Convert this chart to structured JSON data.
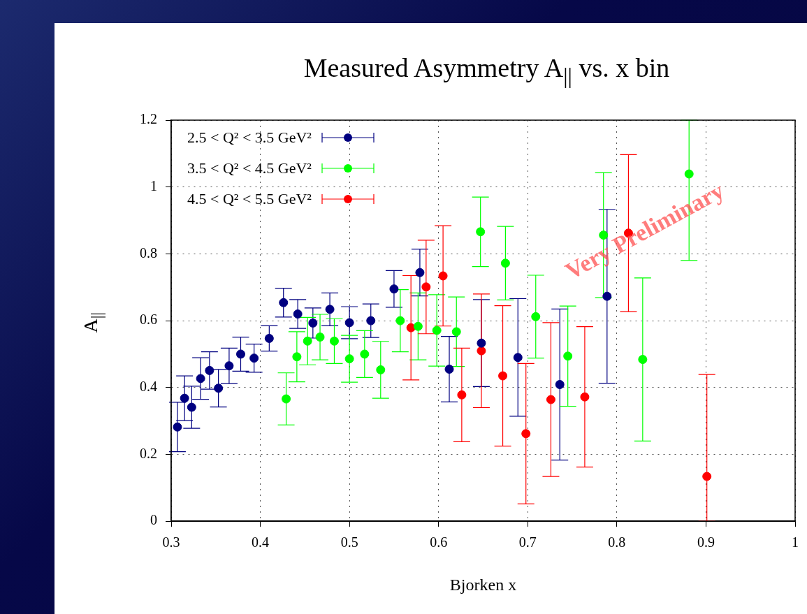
{
  "chart_data": {
    "type": "scatter",
    "title": "Measured Asymmetry A$_{||}$ vs. x bin",
    "xlabel": "Bjorken x",
    "ylabel": "A$_{||}$",
    "xlim": [
      0.3,
      1
    ],
    "xticks": [
      0.3,
      0.4,
      0.5,
      0.6,
      0.7,
      0.8,
      0.9,
      1
    ],
    "ylim": [
      0,
      1.2
    ],
    "yticks": [
      0,
      0.2,
      0.4,
      0.6,
      0.8,
      1,
      1.2
    ],
    "grid": true,
    "legend": "top left",
    "marker": "circle",
    "annotations": [
      "Very Preliminary"
    ],
    "series": [
      {
        "name": "2.5 < Q² < 3.5 GeV²",
        "color": "#000080",
        "x": [
          0.307,
          0.315,
          0.323,
          0.333,
          0.343,
          0.353,
          0.365,
          0.378,
          0.393,
          0.41,
          0.426,
          0.442,
          0.459,
          0.478,
          0.5,
          0.524,
          0.55,
          0.579,
          0.612,
          0.648,
          0.689,
          0.736,
          0.789
        ],
        "values": [
          0.282,
          0.368,
          0.341,
          0.427,
          0.451,
          0.398,
          0.465,
          0.5,
          0.488,
          0.547,
          0.654,
          0.62,
          0.593,
          0.634,
          0.594,
          0.6,
          0.695,
          0.744,
          0.455,
          0.533,
          0.49,
          0.409,
          0.673
        ],
        "errors": [
          0.074,
          0.067,
          0.063,
          0.062,
          0.056,
          0.056,
          0.053,
          0.051,
          0.042,
          0.038,
          0.043,
          0.043,
          0.045,
          0.049,
          0.048,
          0.05,
          0.055,
          0.07,
          0.098,
          0.13,
          0.176,
          0.226,
          0.26
        ]
      },
      {
        "name": "3.5 < Q² < 4.5 GeV²",
        "color": "#00ff00",
        "x": [
          0.429,
          0.441,
          0.453,
          0.467,
          0.483,
          0.5,
          0.517,
          0.535,
          0.557,
          0.577,
          0.598,
          0.62,
          0.647,
          0.675,
          0.709,
          0.745,
          0.785,
          0.829,
          0.881
        ],
        "values": [
          0.366,
          0.492,
          0.539,
          0.551,
          0.539,
          0.486,
          0.5,
          0.453,
          0.6,
          0.583,
          0.571,
          0.567,
          0.866,
          0.772,
          0.612,
          0.494,
          0.856,
          0.484,
          1.039
        ],
        "errors": [
          0.078,
          0.075,
          0.071,
          0.068,
          0.067,
          0.07,
          0.07,
          0.085,
          0.093,
          0.1,
          0.107,
          0.104,
          0.104,
          0.11,
          0.124,
          0.15,
          0.187,
          0.244,
          [
            0.78,
            1.2
          ]
        ]
      },
      {
        "name": "4.5 < Q² < 5.5 GeV²",
        "color": "#ff0000",
        "x": [
          0.569,
          0.586,
          0.605,
          0.626,
          0.648,
          0.672,
          0.698,
          0.726,
          0.764,
          0.813,
          0.901
        ],
        "values": [
          0.579,
          0.701,
          0.734,
          0.378,
          0.51,
          0.435,
          0.262,
          0.364,
          0.372,
          0.862,
          0.134
        ],
        "errors": [
          0.156,
          0.14,
          0.15,
          0.14,
          0.17,
          0.21,
          0.21,
          0.23,
          0.21,
          0.235,
          [
            0,
            0.439
          ]
        ]
      }
    ]
  }
}
